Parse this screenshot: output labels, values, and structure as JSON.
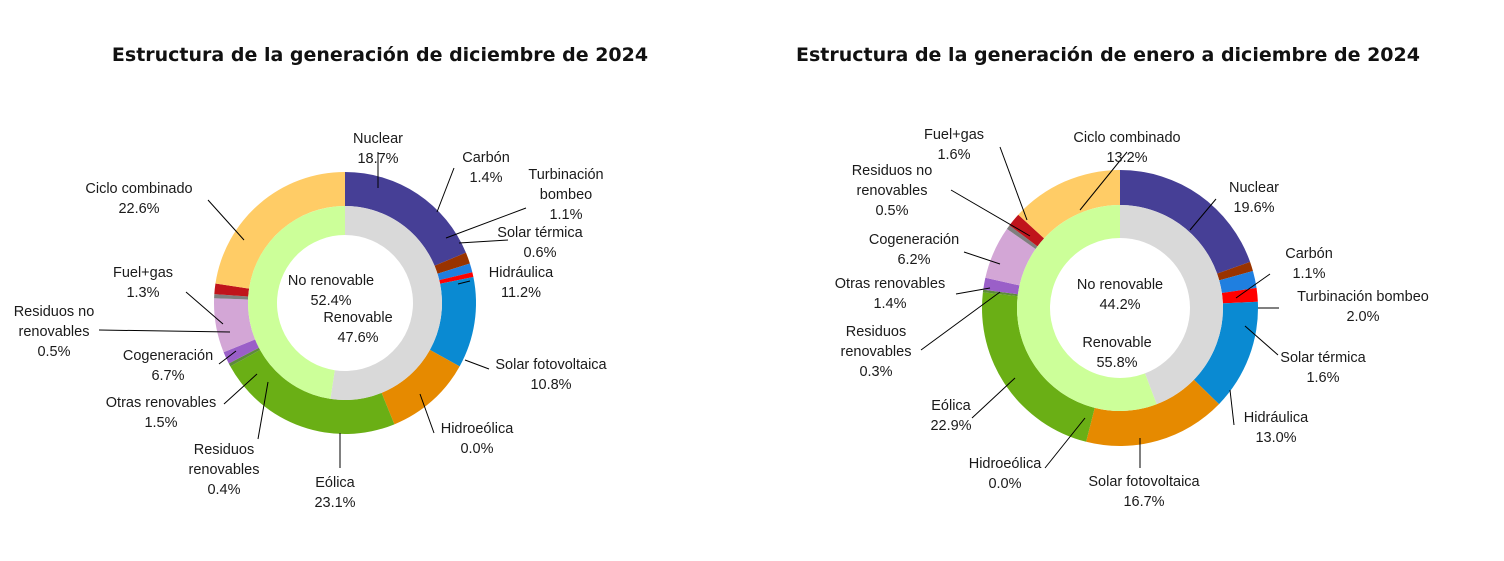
{
  "chart_data": [
    {
      "type": "pie",
      "subtype": "double-donut",
      "title": "Estructura de la generación de diciembre de 2024",
      "outer_series": [
        {
          "name": "Nuclear",
          "value": 18.7,
          "color": "#463F96"
        },
        {
          "name": "Carbón",
          "value": 1.4,
          "color": "#993300"
        },
        {
          "name": "Turbinación bombeo",
          "value": 1.1,
          "color": "#1F7FE0"
        },
        {
          "name": "Solar térmica",
          "value": 0.6,
          "color": "#FF0000"
        },
        {
          "name": "Hidráulica",
          "value": 11.2,
          "color": "#0A8AD2"
        },
        {
          "name": "Solar fotovoltaica",
          "value": 10.8,
          "color": "#E68A00"
        },
        {
          "name": "Hidroeólica",
          "value": 0.0,
          "color": "#00B0F0"
        },
        {
          "name": "Eólica",
          "value": 23.1,
          "color": "#6AAF15"
        },
        {
          "name": "Residuos renovables",
          "value": 0.4,
          "color": "#5E8C3A"
        },
        {
          "name": "Otras renovables",
          "value": 1.5,
          "color": "#9A5FC8"
        },
        {
          "name": "Cogeneración",
          "value": 6.7,
          "color": "#D3A6D6"
        },
        {
          "name": "Residuos no renovables",
          "value": 0.5,
          "color": "#7F7F7F"
        },
        {
          "name": "Fuel+gas",
          "value": 1.3,
          "color": "#C0141B"
        },
        {
          "name": "Ciclo combinado",
          "value": 22.6,
          "color": "#FFCC66"
        }
      ],
      "inner_series": [
        {
          "name": "No renovable",
          "value": 52.4,
          "color": "#D9D9D9"
        },
        {
          "name": "Renovable",
          "value": 47.6,
          "color": "#CCFF99"
        }
      ],
      "labels": [
        {
          "name": "Nuclear",
          "text": "18.7%"
        },
        {
          "name": "Carbón",
          "text": "1.4%"
        },
        {
          "name": "Turbinación",
          "name2": "bombeo",
          "text": "1.1%"
        },
        {
          "name": "Solar térmica",
          "text": "0.6%"
        },
        {
          "name": "Hidráulica",
          "text": "11.2%"
        },
        {
          "name": "Solar fotovoltaica",
          "text": "10.8%"
        },
        {
          "name": "Hidroeólica",
          "text": "0.0%"
        },
        {
          "name": "Eólica",
          "text": "23.1%"
        },
        {
          "name": "Residuos",
          "name2": "renovables",
          "text": "0.4%"
        },
        {
          "name": "Otras renovables",
          "text": "1.5%"
        },
        {
          "name": "Cogeneración",
          "text": "6.7%"
        },
        {
          "name": "Residuos no",
          "name2": "renovables",
          "text": "0.5%"
        },
        {
          "name": "Fuel+gas",
          "text": "1.3%"
        },
        {
          "name": "Ciclo combinado",
          "text": "22.6%"
        },
        {
          "name": "No renovable",
          "text": "52.4%"
        },
        {
          "name": "Renovable",
          "text": "47.6%"
        }
      ]
    },
    {
      "type": "pie",
      "subtype": "double-donut",
      "title": "Estructura de la generación de enero a diciembre de 2024",
      "outer_series": [
        {
          "name": "Nuclear",
          "value": 19.6,
          "color": "#463F96"
        },
        {
          "name": "Carbón",
          "value": 1.1,
          "color": "#993300"
        },
        {
          "name": "Turbinación bombeo",
          "value": 2.0,
          "color": "#1F7FE0"
        },
        {
          "name": "Solar térmica",
          "value": 1.6,
          "color": "#FF0000"
        },
        {
          "name": "Hidráulica",
          "value": 13.0,
          "color": "#0A8AD2"
        },
        {
          "name": "Solar fotovoltaica",
          "value": 16.7,
          "color": "#E68A00"
        },
        {
          "name": "Hidroeólica",
          "value": 0.0,
          "color": "#00B0F0"
        },
        {
          "name": "Eólica",
          "value": 22.9,
          "color": "#6AAF15"
        },
        {
          "name": "Residuos renovables",
          "value": 0.3,
          "color": "#5E8C3A"
        },
        {
          "name": "Otras renovables",
          "value": 1.4,
          "color": "#9A5FC8"
        },
        {
          "name": "Cogeneración",
          "value": 6.2,
          "color": "#D3A6D6"
        },
        {
          "name": "Residuos no renovables",
          "value": 0.5,
          "color": "#7F7F7F"
        },
        {
          "name": "Fuel+gas",
          "value": 1.6,
          "color": "#C0141B"
        },
        {
          "name": "Ciclo combinado",
          "value": 13.2,
          "color": "#FFCC66"
        }
      ],
      "inner_series": [
        {
          "name": "No renovable",
          "value": 44.2,
          "color": "#D9D9D9"
        },
        {
          "name": "Renovable",
          "value": 55.8,
          "color": "#CCFF99"
        }
      ],
      "labels": [
        {
          "name": "Nuclear",
          "text": "19.6%"
        },
        {
          "name": "Carbón",
          "text": "1.1%"
        },
        {
          "name": "Turbinación bombeo",
          "text": "2.0%"
        },
        {
          "name": "Solar térmica",
          "text": "1.6%"
        },
        {
          "name": "Hidráulica",
          "text": "13.0%"
        },
        {
          "name": "Solar fotovoltaica",
          "text": "16.7%"
        },
        {
          "name": "Hidroeólica",
          "text": "0.0%"
        },
        {
          "name": "Eólica",
          "text": "22.9%"
        },
        {
          "name": "Residuos",
          "name2": "renovables",
          "text": "0.3%"
        },
        {
          "name": "Otras renovables",
          "text": "1.4%"
        },
        {
          "name": "Cogeneración",
          "text": "6.2%"
        },
        {
          "name": "Residuos no",
          "name2": "renovables",
          "text": "0.5%"
        },
        {
          "name": "Fuel+gas",
          "text": "1.6%"
        },
        {
          "name": "Ciclo combinado",
          "text": "13.2%"
        },
        {
          "name": "No renovable",
          "text": "44.2%"
        },
        {
          "name": "Renovable",
          "text": "55.8%"
        }
      ]
    }
  ]
}
